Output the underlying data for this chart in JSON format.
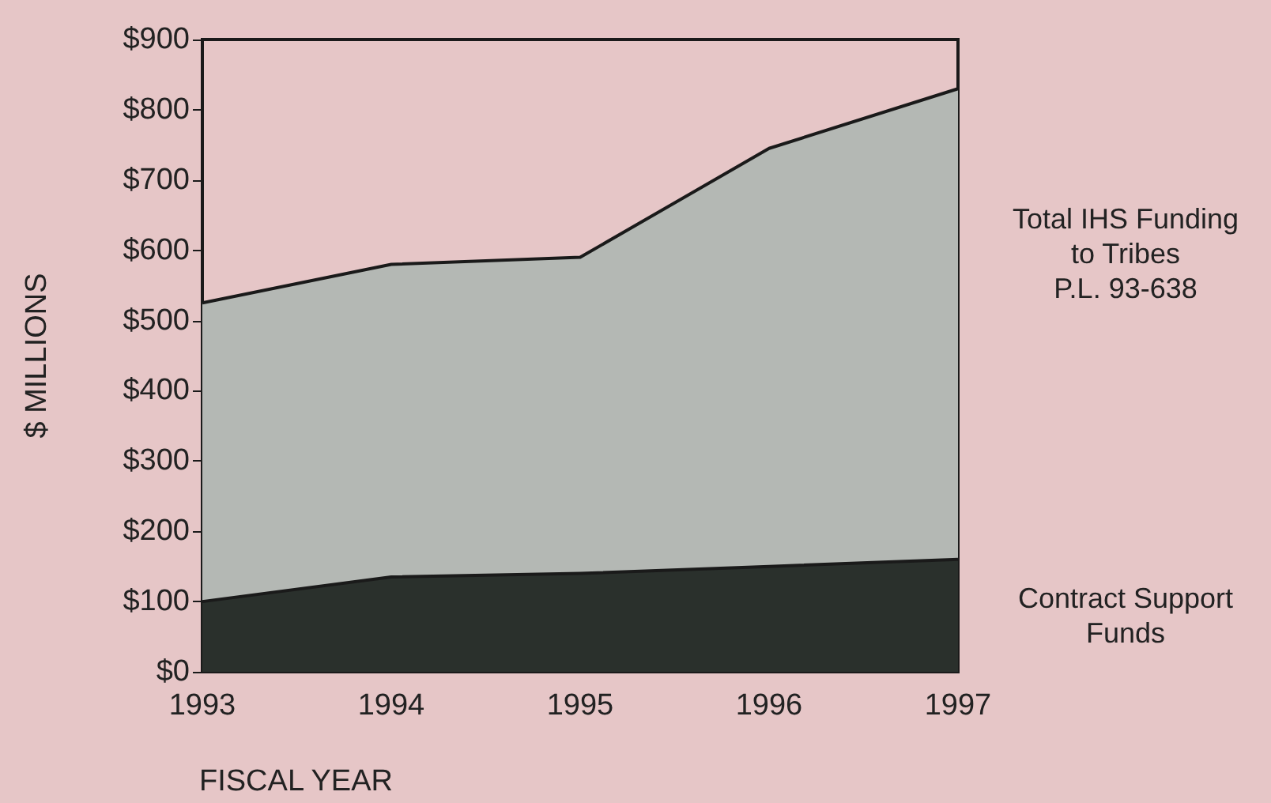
{
  "chart_data": {
    "type": "area",
    "xlabel": "FISCAL YEAR",
    "ylabel": "$ MILLIONS",
    "categories": [
      "1993",
      "1994",
      "1995",
      "1996",
      "1997"
    ],
    "series": [
      {
        "name": "Total IHS Funding\nto Tribes\nP.L. 93-638",
        "color": "#b4b8b4",
        "values": [
          525,
          580,
          590,
          745,
          830
        ]
      },
      {
        "name": "Contract Support\nFunds",
        "color": "#2a302c",
        "values": [
          100,
          135,
          140,
          150,
          160
        ]
      }
    ],
    "ylim": [
      0,
      900
    ],
    "yticks": [
      {
        "value": 0,
        "label": "$0"
      },
      {
        "value": 100,
        "label": "$100"
      },
      {
        "value": 200,
        "label": "$200"
      },
      {
        "value": 300,
        "label": "$300"
      },
      {
        "value": 400,
        "label": "$400"
      },
      {
        "value": 500,
        "label": "$500"
      },
      {
        "value": 600,
        "label": "$600"
      },
      {
        "value": 700,
        "label": "$700"
      },
      {
        "value": 800,
        "label": "$800"
      },
      {
        "value": 900,
        "label": "$900"
      }
    ],
    "grid": false,
    "legend": false,
    "marker": "none",
    "line_style": "solid"
  }
}
